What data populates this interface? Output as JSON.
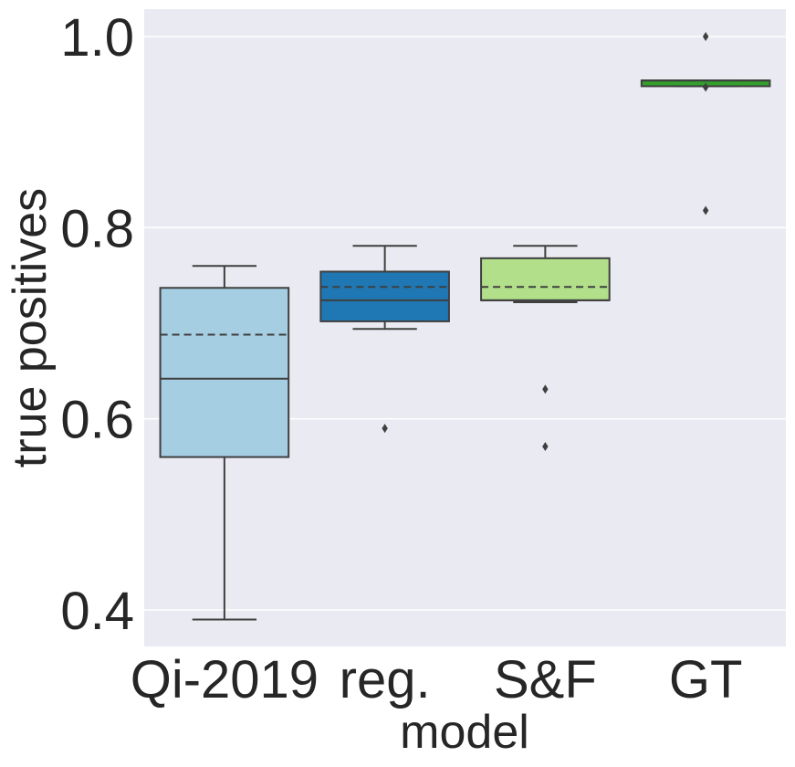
{
  "chart_data": {
    "type": "box",
    "title": "",
    "xlabel": "model",
    "ylabel": "true positives",
    "ylim": [
      0.363,
      1.03
    ],
    "yticks": [
      0.4,
      0.6,
      0.8,
      1.0
    ],
    "ytick_labels": [
      "0.4",
      "0.6",
      "0.8",
      "1.0"
    ],
    "grid": true,
    "categories": [
      "Qi-2019",
      "reg.",
      "S&F",
      "GT"
    ],
    "boxes": [
      {
        "label": "Qi-2019",
        "color": "#a6cee3",
        "whisker_low": 0.39,
        "q1": 0.56,
        "median": 0.642,
        "mean": 0.688,
        "q3": 0.737,
        "whisker_high": 0.76,
        "outliers": []
      },
      {
        "label": "reg.",
        "color": "#1f78b4",
        "whisker_low": 0.694,
        "q1": 0.702,
        "median": 0.724,
        "mean": 0.738,
        "q3": 0.754,
        "whisker_high": 0.781,
        "outliers": [
          0.59
        ]
      },
      {
        "label": "S&F",
        "color": "#b2df8a",
        "whisker_low": 0.722,
        "q1": 0.724,
        "median": 0.724,
        "mean": 0.738,
        "q3": 0.768,
        "whisker_high": 0.781,
        "outliers": [
          0.631,
          0.571
        ]
      },
      {
        "label": "GT",
        "color": "#33a02c",
        "whisker_low": 0.948,
        "q1": 0.948,
        "median": 0.954,
        "mean": 0.954,
        "q3": 0.954,
        "whisker_high": 0.954,
        "outliers": [
          1.0,
          0.947,
          0.818
        ]
      }
    ]
  }
}
